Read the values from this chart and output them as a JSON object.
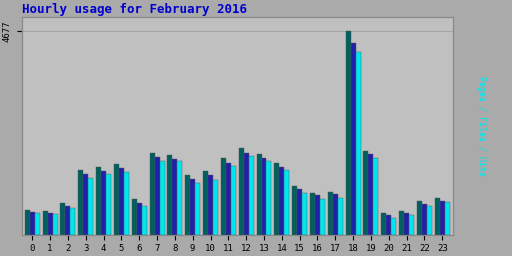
{
  "title": "Hourly usage for February 2016",
  "title_color": "#0000cc",
  "title_fontsize": 9,
  "background_color": "#aaaaaa",
  "plot_bg_color": "#c0c0c0",
  "bar_border_color": "#555555",
  "ytick_label": "4677",
  "hours": [
    0,
    1,
    2,
    3,
    4,
    5,
    6,
    7,
    8,
    9,
    10,
    11,
    12,
    13,
    14,
    15,
    16,
    17,
    18,
    19,
    20,
    21,
    22,
    23
  ],
  "pages": [
    570,
    540,
    720,
    1480,
    1550,
    1620,
    820,
    1870,
    1820,
    1360,
    1460,
    1750,
    1980,
    1840,
    1650,
    1110,
    960,
    980,
    4677,
    1920,
    490,
    540,
    760,
    840
  ],
  "files": [
    520,
    490,
    660,
    1390,
    1460,
    1530,
    730,
    1780,
    1740,
    1270,
    1360,
    1650,
    1880,
    1760,
    1560,
    1040,
    900,
    920,
    4400,
    1840,
    440,
    490,
    700,
    780
  ],
  "hits": [
    490,
    460,
    610,
    1310,
    1380,
    1440,
    660,
    1700,
    1680,
    1180,
    1260,
    1570,
    1800,
    1690,
    1490,
    960,
    820,
    850,
    4200,
    1760,
    390,
    450,
    660,
    740
  ],
  "pages_color": "#006060",
  "files_color": "#2020aa",
  "hits_color": "#00e5ee",
  "ylim_max": 5000,
  "bar_width": 0.28,
  "right_label": "Pages / Files / Hits",
  "right_label_colors": [
    "#006060",
    "#2020aa",
    "#00e5ee"
  ]
}
